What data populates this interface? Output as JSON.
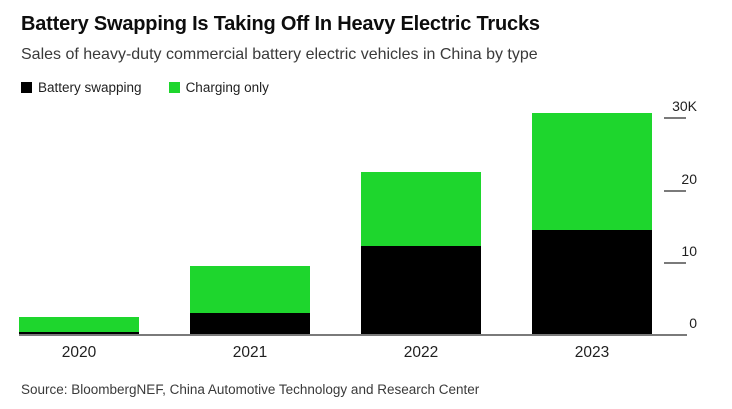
{
  "title": "Battery Swapping Is Taking Off In Heavy Electric Trucks",
  "subtitle": "Sales of heavy-duty commercial battery electric vehicles in China by type",
  "source": "Source: BloombergNEF, China Automotive Technology and Research Center",
  "colors": {
    "battery_swapping": "#000000",
    "charging_only": "#1ed62d",
    "axis": "#7a7a7a",
    "background": "#ffffff"
  },
  "chart_data": {
    "type": "bar",
    "stacked": true,
    "title": "Battery Swapping Is Taking Off In Heavy Electric Trucks",
    "subtitle": "Sales of heavy-duty commercial battery electric vehicles in China by type",
    "unit": "thousand vehicles (K)",
    "categories": [
      "2020",
      "2021",
      "2022",
      "2023"
    ],
    "series": [
      {
        "name": "Battery swapping",
        "color": "#000000",
        "values": [
          0.5,
          3.2,
          12.4,
          14.6
        ]
      },
      {
        "name": "Charging only",
        "color": "#1ed62d",
        "values": [
          2.1,
          6.4,
          10.2,
          16.0
        ]
      }
    ],
    "y_ticks": [
      {
        "value": 0,
        "label": "0"
      },
      {
        "value": 10,
        "label": "10"
      },
      {
        "value": 20,
        "label": "20"
      },
      {
        "value": 30,
        "label": "30K"
      }
    ],
    "ylim": [
      0,
      33
    ],
    "grid": false,
    "legend_position": "top-left",
    "y_axis_side": "right",
    "xlabel": "",
    "ylabel": ""
  }
}
